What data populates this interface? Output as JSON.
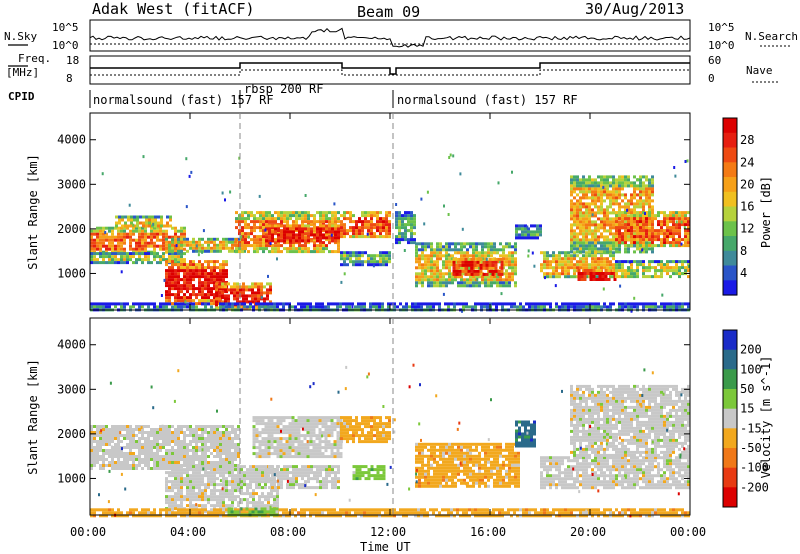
{
  "header": {
    "radar": "Adak West (fitACF)",
    "beam": "Beam 09",
    "date": "30/Aug/2013"
  },
  "top_panels": {
    "nsky_label": "N.Sky",
    "nsky_ticks": [
      "10^5",
      "10^0"
    ],
    "nsearch_label": "N.Search",
    "nsearch_ticks": [
      "10^5",
      "10^0"
    ],
    "freq_label": "Freq.",
    "freq_unit": "[MHz]",
    "freq_ticks": [
      "18",
      "8"
    ],
    "nave_label": "Nave",
    "nave_ticks": [
      "60",
      "0"
    ],
    "cpid_label": "CPID",
    "cpid_segments": [
      "normalsound (fast) 157 RF",
      "rbsp 200 RF",
      "normalsound (fast) 157 RF"
    ]
  },
  "chart_data": [
    {
      "type": "heatmap",
      "name": "power-panel",
      "ylabel": "Slant Range [km]",
      "yticks": [
        "1000",
        "2000",
        "3000",
        "4000"
      ],
      "ylim": [
        180,
        4600
      ],
      "xlim": [
        0,
        24
      ],
      "colorbar_label": "Power [dB]",
      "colorbar_ticks": [
        "4",
        "8",
        "12",
        "16",
        "20",
        "24",
        "28"
      ],
      "colors": [
        "#1a1ae6",
        "#2a55c8",
        "#3f8a9a",
        "#46a86a",
        "#6cc24a",
        "#b6d23c",
        "#f0c020",
        "#f6a018",
        "#f47a14",
        "#ee4a12",
        "#e61e10",
        "#dc0000"
      ],
      "regions": [
        {
          "t": [
            0.0,
            3.8
          ],
          "r": [
            1480,
            2050
          ],
          "level": 0.72
        },
        {
          "t": [
            0.0,
            3.8
          ],
          "r": [
            1250,
            1480
          ],
          "level": 0.45
        },
        {
          "t": [
            1.0,
            3.2
          ],
          "r": [
            2050,
            2300
          ],
          "level": 0.55
        },
        {
          "t": [
            3.0,
            6.2
          ],
          "r": [
            1500,
            1800
          ],
          "level": 0.55
        },
        {
          "t": [
            3.0,
            5.5
          ],
          "r": [
            300,
            1300
          ],
          "level": 0.92
        },
        {
          "t": [
            5.0,
            7.2
          ],
          "r": [
            200,
            800
          ],
          "level": 0.85
        },
        {
          "t": [
            5.8,
            10.0
          ],
          "r": [
            1500,
            2400
          ],
          "level": 0.72
        },
        {
          "t": [
            7.0,
            10.0
          ],
          "r": [
            1700,
            2100
          ],
          "level": 0.9
        },
        {
          "t": [
            10.0,
            12.0
          ],
          "r": [
            1800,
            2400
          ],
          "level": 0.78
        },
        {
          "t": [
            10.0,
            12.0
          ],
          "r": [
            1200,
            1500
          ],
          "level": 0.35
        },
        {
          "t": [
            12.2,
            13.0
          ],
          "r": [
            1700,
            2400
          ],
          "level": 0.35
        },
        {
          "t": [
            13.0,
            17.0
          ],
          "r": [
            700,
            1700
          ],
          "level": 0.55
        },
        {
          "t": [
            14.5,
            16.5
          ],
          "r": [
            950,
            1350
          ],
          "level": 0.88
        },
        {
          "t": [
            17.0,
            18.0
          ],
          "r": [
            1800,
            2100
          ],
          "level": 0.25
        },
        {
          "t": [
            18.0,
            21.0
          ],
          "r": [
            900,
            1500
          ],
          "level": 0.6
        },
        {
          "t": [
            19.5,
            21.0
          ],
          "r": [
            850,
            1100
          ],
          "level": 0.92
        },
        {
          "t": [
            21.0,
            24.0
          ],
          "r": [
            900,
            1300
          ],
          "level": 0.45
        },
        {
          "t": [
            19.2,
            22.5
          ],
          "r": [
            1500,
            3200
          ],
          "level": 0.6
        },
        {
          "t": [
            21.0,
            24.0
          ],
          "r": [
            1600,
            2400
          ],
          "level": 0.75
        },
        {
          "t": [
            0.0,
            24.0
          ],
          "r": [
            180,
            350
          ],
          "level": 0.2
        }
      ]
    },
    {
      "type": "heatmap",
      "name": "velocity-panel",
      "ylabel": "Slant Range [km]",
      "yticks": [
        "1000",
        "2000",
        "3000",
        "4000"
      ],
      "ylim": [
        180,
        4600
      ],
      "xlim": [
        0,
        24
      ],
      "colorbar_label": "Velocity [m s^-1]",
      "colorbar_ticks": [
        "200",
        "100",
        "50",
        "15",
        "-15",
        "-50",
        "-100",
        "-200"
      ],
      "colors": [
        "#1a2cc8",
        "#2a6a8a",
        "#3a9a4a",
        "#7cc83a",
        "#c8c8c8",
        "#f2a81e",
        "#f07818",
        "#e83a12",
        "#dc0000"
      ],
      "regions": [
        {
          "t": [
            0.0,
            6.0
          ],
          "r": [
            1250,
            2200
          ],
          "class": 4
        },
        {
          "t": [
            3.0,
            7.5
          ],
          "r": [
            250,
            1300
          ],
          "class": 4
        },
        {
          "t": [
            6.5,
            10.0
          ],
          "r": [
            1500,
            2400
          ],
          "class": 4
        },
        {
          "t": [
            7.0,
            10.0
          ],
          "r": [
            800,
            1300
          ],
          "class": 4
        },
        {
          "t": [
            10.0,
            12.0
          ],
          "r": [
            1800,
            2400
          ],
          "class": 5
        },
        {
          "t": [
            10.5,
            11.8
          ],
          "r": [
            1000,
            1300
          ],
          "class": 3
        },
        {
          "t": [
            13.0,
            17.2
          ],
          "r": [
            800,
            1800
          ],
          "class": 5
        },
        {
          "t": [
            17.0,
            17.8
          ],
          "r": [
            1700,
            2300
          ],
          "class": 1
        },
        {
          "t": [
            18.0,
            24.0
          ],
          "r": [
            800,
            1500
          ],
          "class": 4
        },
        {
          "t": [
            19.2,
            24.0
          ],
          "r": [
            1500,
            3100
          ],
          "class": 4
        },
        {
          "t": [
            0.0,
            24.0
          ],
          "r": [
            180,
            330
          ],
          "class": 5
        },
        {
          "t": [
            5.5,
            7.5
          ],
          "r": [
            180,
            350
          ],
          "class": 3
        }
      ]
    }
  ],
  "time_axis": {
    "ticks": [
      "00:00",
      "04:00",
      "08:00",
      "12:00",
      "16:00",
      "20:00",
      "00:00"
    ],
    "label": "Time UT"
  }
}
